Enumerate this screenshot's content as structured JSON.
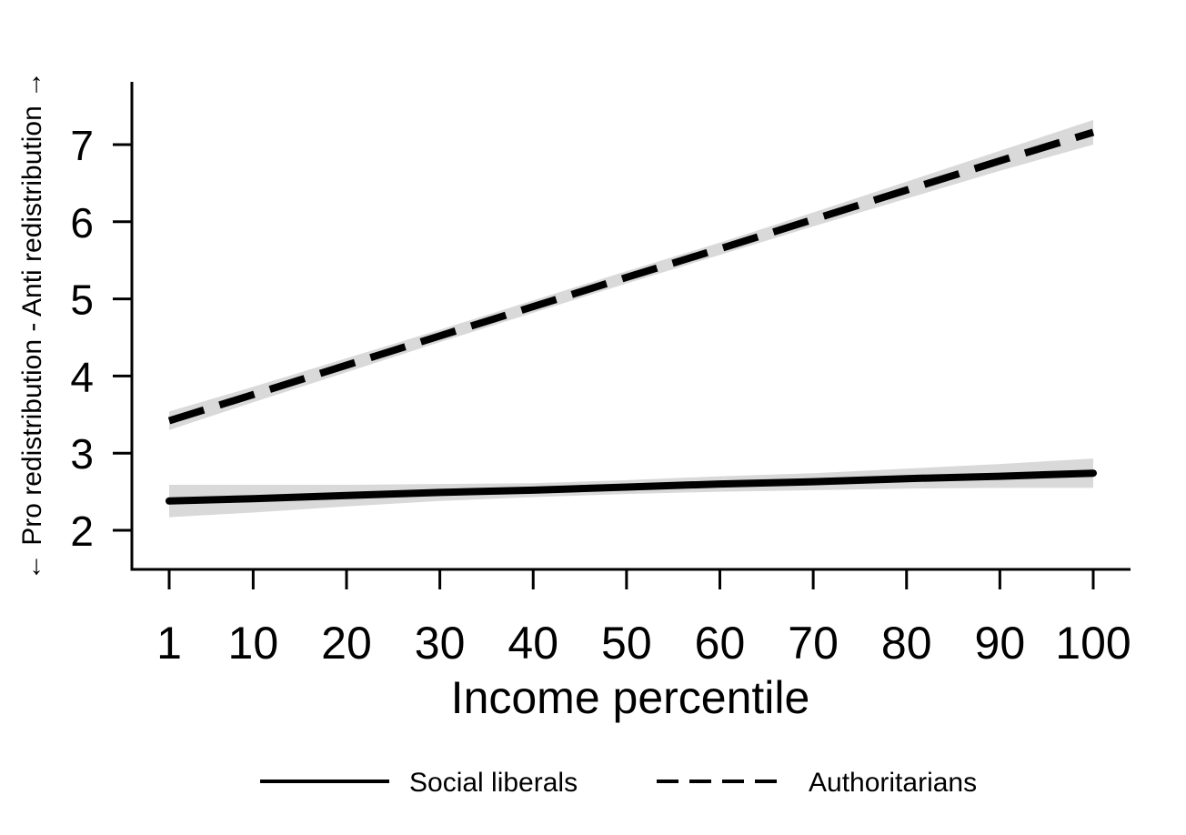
{
  "chart_data": {
    "type": "line",
    "xlabel": "Income percentile",
    "ylabel": "← Pro redistribution - Anti redistribution →",
    "x": [
      1,
      10,
      20,
      30,
      40,
      50,
      60,
      70,
      80,
      90,
      100
    ],
    "x_ticks": [
      "1",
      "10",
      "20",
      "30",
      "40",
      "50",
      "60",
      "70",
      "80",
      "90",
      "100"
    ],
    "y_ticks": [
      "2",
      "3",
      "4",
      "5",
      "6",
      "7"
    ],
    "xlim": [
      -3,
      104
    ],
    "ylim": [
      1.5,
      7.8
    ],
    "grid": false,
    "legend_position": "bottom",
    "confidence_band_color": "#d9d9d9",
    "series": [
      {
        "name": "Social liberals",
        "style": "solid",
        "color": "#000000",
        "values": [
          2.38,
          2.41,
          2.45,
          2.49,
          2.52,
          2.56,
          2.6,
          2.63,
          2.67,
          2.7,
          2.74
        ],
        "ci_low": [
          2.17,
          2.23,
          2.31,
          2.38,
          2.43,
          2.47,
          2.5,
          2.52,
          2.54,
          2.55,
          2.55
        ],
        "ci_high": [
          2.59,
          2.59,
          2.59,
          2.6,
          2.61,
          2.65,
          2.7,
          2.74,
          2.8,
          2.86,
          2.93
        ]
      },
      {
        "name": "Authoritarians",
        "style": "dashed",
        "color": "#000000",
        "values": [
          3.42,
          3.76,
          4.14,
          4.52,
          4.9,
          5.28,
          5.65,
          6.03,
          6.41,
          6.79,
          7.16
        ],
        "ci_low": [
          3.3,
          3.66,
          4.05,
          4.44,
          4.82,
          5.2,
          5.57,
          5.94,
          6.3,
          6.66,
          7.0
        ],
        "ci_high": [
          3.54,
          3.86,
          4.23,
          4.6,
          4.98,
          5.36,
          5.73,
          6.12,
          6.52,
          6.92,
          7.32
        ]
      }
    ]
  }
}
